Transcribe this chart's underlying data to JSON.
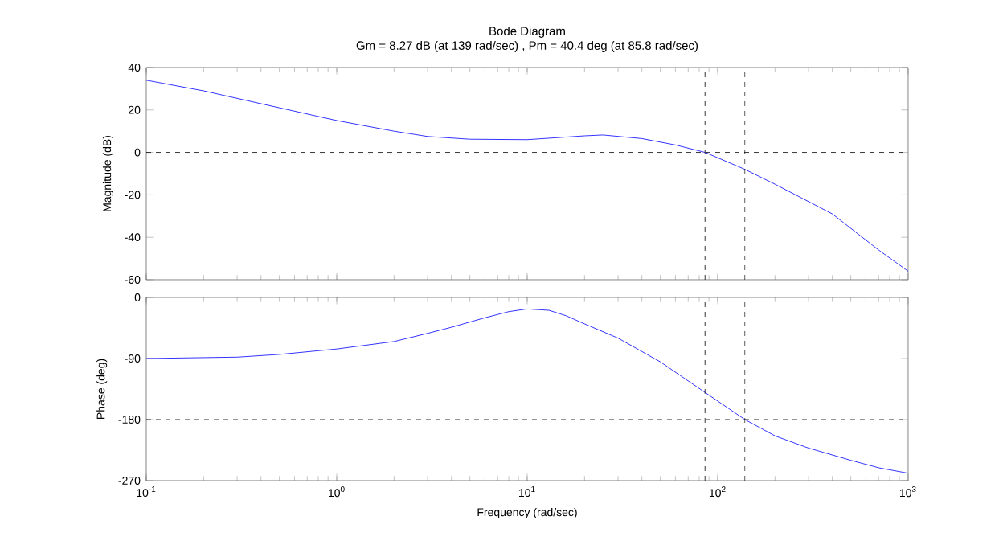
{
  "chart_data": [
    {
      "type": "line",
      "title": "Bode Diagram",
      "subtitle": "Gm = 8.27 dB (at 139 rad/sec) ,  Pm = 40.4 deg (at 85.8 rad/sec)",
      "ylabel": "Magnitude (dB)",
      "log": "x",
      "tick_labels": "y",
      "xlim": [
        0.1,
        1000
      ],
      "xticks": [
        {
          "value": 0.1,
          "label": null
        },
        {
          "value": 1,
          "label": null
        },
        {
          "value": 10,
          "label": null
        },
        {
          "value": 100,
          "label": null
        },
        {
          "value": 1000,
          "label": null
        }
      ],
      "ylim": [
        -60,
        40
      ],
      "yticks": [
        -60,
        -40,
        -20,
        0,
        20,
        40
      ],
      "series": [
        {
          "color": "#0000ff",
          "x": [
            0.1,
            0.2,
            0.5,
            1,
            2,
            3,
            5,
            10,
            20,
            25,
            40,
            60,
            85.8,
            139,
            200,
            400,
            700,
            1000
          ],
          "values": [
            34,
            29,
            21,
            15,
            10,
            7.5,
            6.2,
            6,
            7.8,
            8.2,
            6.5,
            3.5,
            0,
            -8,
            -15,
            -29,
            -46,
            -56
          ]
        }
      ],
      "ref_lines": [
        {
          "axis": "y",
          "value": 0,
          "line_style": "dashed",
          "color": "#000000"
        },
        {
          "axis": "x",
          "value": 85.8,
          "line_style": "dashed",
          "color": "#000000"
        },
        {
          "axis": "x",
          "value": 139,
          "line_style": "dashed",
          "color": "#000000"
        }
      ]
    },
    {
      "type": "line",
      "xlabel": "Frequency (rad/sec)",
      "ylabel": "Phase (deg)",
      "log": "x",
      "xlim": [
        0.1,
        1000
      ],
      "xticks": [
        {
          "value": 0.1,
          "label": "10$^{-1}$"
        },
        {
          "value": 1,
          "label": "10$^{0}$"
        },
        {
          "value": 10,
          "label": "10$^{1}$"
        },
        {
          "value": 100,
          "label": "10$^{2}$"
        },
        {
          "value": 1000,
          "label": "10$^{3}$"
        }
      ],
      "ylim": [
        -270,
        0
      ],
      "yticks": [
        -270,
        -180,
        -90,
        0
      ],
      "series": [
        {
          "color": "#0000ff",
          "x": [
            0.1,
            0.3,
            0.5,
            1,
            2,
            3,
            4,
            6,
            8,
            10,
            13,
            16,
            20,
            30,
            50,
            85.8,
            139,
            200,
            300,
            500,
            700,
            1000
          ],
          "values": [
            -90,
            -88,
            -84,
            -76,
            -65,
            -53,
            -44,
            -30,
            -21,
            -17,
            -19,
            -27,
            -39,
            -60,
            -95,
            -140,
            -180,
            -204,
            -222,
            -240,
            -251,
            -259
          ]
        }
      ],
      "ref_lines": [
        {
          "axis": "y",
          "value": -180,
          "line_style": "dashed",
          "color": "#000000"
        },
        {
          "axis": "x",
          "value": 85.8,
          "line_style": "dashed",
          "color": "#000000"
        },
        {
          "axis": "x",
          "value": 139,
          "line_style": "dashed",
          "color": "#000000"
        }
      ]
    }
  ]
}
